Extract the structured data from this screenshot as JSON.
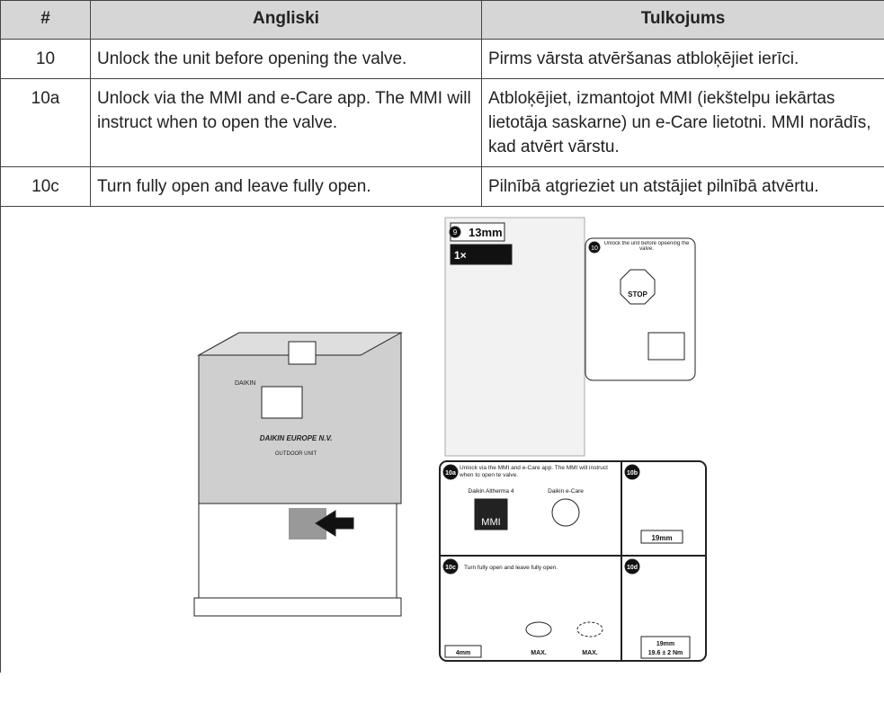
{
  "table": {
    "header": [
      "#",
      "Angliski",
      "Tulkojums"
    ],
    "rows": [
      [
        "10",
        "Unlock the unit before opening the valve.",
        "Pirms vārsta atvēršanas atbloķējiet ierīci."
      ],
      [
        "10a",
        "Unlock via the MMI and e-Care app. The MMI will instruct when to open the valve.",
        "Atbloķējiet, izmantojot MMI (iekštelpu iekārtas lietotāja saskarne) un e-Care lietotni. MMI norādīs, kad atvērt vārstu."
      ],
      [
        "10c",
        "Turn fully open and leave fully open.",
        "Pilnībā atgrieziet un atstājiet pilnībā atvērtu."
      ]
    ]
  },
  "figure": {
    "unit": {
      "brand": "DAIKIN",
      "maker": "DAIKIN EUROPE N.V.",
      "model": "OUTDOOR UNIT"
    },
    "top": {
      "step": "9",
      "tool": "13mm",
      "count": "1×",
      "step10": "10",
      "note": "Unlock the unit before opeening the valve.",
      "stop": "STOP"
    },
    "a": {
      "step": "10a",
      "note": "Unlock via the MMI and e-Care app. The MMI will instruct when to open te valve.",
      "left": "Daikin Altherma 4",
      "right": "Daikin e-Care",
      "mmi": "MMI"
    },
    "b": {
      "step": "10b",
      "tool": "19mm"
    },
    "c": {
      "step": "10c",
      "note": "Turn fully open and leave fully open.",
      "tool": "4mm",
      "max1": "MAX.",
      "max2": "MAX."
    },
    "d": {
      "step": "10d",
      "tool": "19mm",
      "torque": "19.6 ± 2 Nm"
    }
  }
}
